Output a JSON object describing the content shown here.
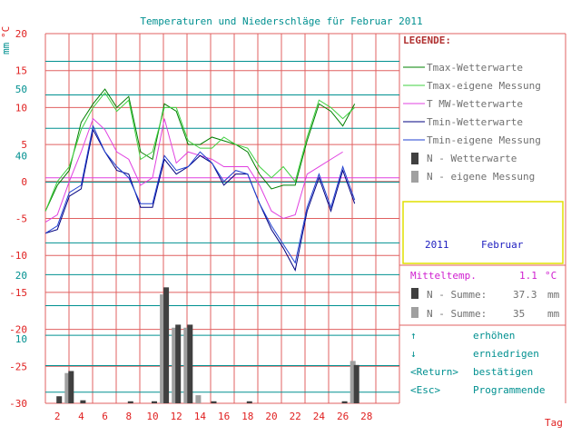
{
  "title": "Temperaturen und Niederschläge für Februar 2011",
  "unit_left_mm": "mm",
  "unit_left_c": "°C",
  "xlabel": "Tag",
  "legend": {
    "heading": "LEGENDE:",
    "items": [
      {
        "label": "Tmax-Wetterwarte",
        "color": "#008000",
        "kind": "line"
      },
      {
        "label": "Tmax-eigene Messung",
        "color": "#40d040",
        "kind": "line"
      },
      {
        "label": "T MW-Wetterwarte",
        "color": "#e040e0",
        "kind": "line"
      },
      {
        "label": "Tmin-Wetterwarte",
        "color": "#000080",
        "kind": "line"
      },
      {
        "label": "Tmin-eigene Messung",
        "color": "#2040d0",
        "kind": "line"
      },
      {
        "label": "N - Wetterwarte",
        "color": "#404040",
        "kind": "bar"
      },
      {
        "label": "N - eigene Messung",
        "color": "#a0a0a0",
        "kind": "bar"
      }
    ]
  },
  "period": {
    "year": "2011",
    "month": "Februar"
  },
  "stats": {
    "mean_label": "Mitteltemp.",
    "mean_value": "1.1",
    "mean_unit": "°C",
    "sum1_label": "N - Summe:",
    "sum1_value": "37.3",
    "sum1_unit": "mm",
    "sum2_label": "N - Summe:",
    "sum2_value": "35",
    "sum2_unit": "mm"
  },
  "controls": {
    "up_key": "↑",
    "up_label": "erhöhen",
    "down_key": "↓",
    "down_label": "erniedrigen",
    "return_key": "<Return>",
    "return_label": "bestätigen",
    "esc_key": "<Esc>",
    "esc_label": "Programmende"
  },
  "colors": {
    "grid": "#e06060",
    "teal": "#009090",
    "magenta_line": "#e040e0"
  },
  "chart_data": {
    "type": "line",
    "days": [
      1,
      2,
      3,
      4,
      5,
      6,
      7,
      8,
      9,
      10,
      11,
      12,
      13,
      14,
      15,
      16,
      17,
      18,
      19,
      20,
      21,
      22,
      23,
      24,
      25,
      26,
      27,
      28
    ],
    "x_tick_labels": [
      "2",
      "4",
      "6",
      "8",
      "10",
      "12",
      "14",
      "16",
      "18",
      "20",
      "22",
      "24",
      "26",
      "28"
    ],
    "temp_ylim": [
      -30,
      20
    ],
    "temp_ticks": [
      "20",
      "15",
      "10",
      "5",
      "0",
      "-5",
      "-10",
      "-15",
      "-20",
      "-25",
      "-30"
    ],
    "precip_ticks_mm": [
      "50",
      "40",
      "30",
      "20",
      "10"
    ],
    "series": [
      {
        "name": "Tmax-Wetterwarte",
        "color": "#008000",
        "values": [
          -4,
          -0.5,
          1.5,
          8,
          10.5,
          12.5,
          10,
          11.5,
          4,
          3,
          10.5,
          9.5,
          5,
          5,
          6,
          5.5,
          5,
          4,
          1,
          -1,
          -0.5,
          -0.5,
          5.5,
          10.5,
          9.5,
          7.5,
          10.5,
          null
        ]
      },
      {
        "name": "Tmax-eigene Messung",
        "color": "#40d040",
        "values": [
          -4,
          0,
          2,
          7,
          10,
          12,
          9.5,
          11,
          3,
          4,
          10,
          10,
          5.5,
          4.5,
          4.5,
          6,
          5,
          4.5,
          2,
          0.5,
          2,
          0,
          6,
          11,
          10,
          8.5,
          10,
          null
        ]
      },
      {
        "name": "T MW-Wetterwarte",
        "color": "#e040e0",
        "values": [
          -5.5,
          -4.5,
          0,
          4,
          8.5,
          7,
          4,
          3,
          -0.5,
          0.5,
          8.5,
          2.5,
          4,
          3.5,
          3,
          2,
          2,
          2,
          -0.5,
          -4,
          -5,
          -4.5,
          1,
          2,
          3,
          4,
          null,
          null
        ]
      },
      {
        "name": "Tmin-Wetterwarte",
        "color": "#000080",
        "values": [
          -7,
          -6.5,
          -2,
          -1,
          7,
          4,
          1.5,
          1,
          -3.5,
          -3.5,
          3,
          1,
          2,
          3.5,
          2.5,
          -0.5,
          1,
          1,
          -3,
          -6.5,
          -9,
          -12,
          -4,
          0.5,
          -4,
          1.5,
          -3,
          null
        ]
      },
      {
        "name": "Tmin-eigene Messung",
        "color": "#2040d0",
        "values": [
          -7,
          -6,
          -1.5,
          -0.5,
          7.5,
          4,
          2,
          0.5,
          -3,
          -3,
          3.5,
          1.5,
          2,
          4,
          2.5,
          0,
          1.5,
          1,
          -3,
          -6,
          -8.5,
          -11,
          -3.5,
          1,
          -3.5,
          2,
          -2.5,
          null
        ]
      }
    ],
    "precip": {
      "N - Wetterwarte": [
        0,
        0.7,
        3.2,
        0.3,
        0,
        0,
        0,
        0.2,
        0,
        0.2,
        11.5,
        7.8,
        7.8,
        0,
        0.2,
        0,
        0,
        0.2,
        0,
        0,
        0,
        0,
        0,
        0,
        0,
        0.2,
        3.8,
        null
      ],
      "N - eigene Messung": [
        0,
        0,
        3,
        0,
        0,
        0,
        0,
        0,
        0,
        0,
        10.8,
        7.5,
        7.5,
        0.8,
        0,
        0,
        0,
        0,
        0,
        0,
        0,
        0,
        0,
        0,
        0,
        0,
        4.2,
        null
      ]
    }
  }
}
